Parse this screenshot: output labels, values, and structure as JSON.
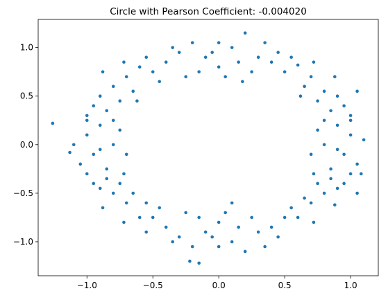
{
  "chart_data": {
    "type": "scatter",
    "title": "Circle with Pearson Coefficient: -0.004020",
    "color": "#1f77b4",
    "x": [
      -0.5,
      -0.4,
      -0.3,
      -0.2,
      -0.1,
      0,
      0.1,
      0.2,
      0.3,
      0.4,
      0.5,
      -0.45,
      -0.25,
      0.05,
      0.25,
      0.45,
      -0.35,
      0.15,
      -0.15,
      0.35,
      0.55,
      -0.55,
      0,
      -0.05,
      0.18,
      -0.7,
      -0.8,
      -0.9,
      -0.65,
      -0.75,
      -0.85,
      -0.95,
      -0.6,
      -0.72,
      -1.0,
      -0.88,
      -0.62,
      0.7,
      0.8,
      0.9,
      0.65,
      0.75,
      0.85,
      0.95,
      0.6,
      0.72,
      1.0,
      0.88,
      0.62,
      1.05,
      -0.9,
      -1.0,
      -0.8,
      -0.95,
      -1.05,
      -0.85,
      -0.75,
      -1.1,
      -0.7,
      -0.9,
      -1.0,
      -0.8,
      -1.26,
      -1.13,
      -0.72,
      0.9,
      1.0,
      0.8,
      0.95,
      1.05,
      0.85,
      0.75,
      1.1,
      0.7,
      0.9,
      1.0,
      0.8,
      1.08,
      0.72,
      -0.7,
      -0.8,
      -0.9,
      -0.65,
      -0.75,
      -0.85,
      -0.95,
      -0.6,
      -0.72,
      -1.0,
      -0.88,
      -0.55,
      0.7,
      0.8,
      0.9,
      0.65,
      0.75,
      0.85,
      0.95,
      0.6,
      0.72,
      1.0,
      0.88,
      0.55,
      1.05,
      -0.5,
      -0.4,
      -0.3,
      -0.2,
      -0.1,
      0,
      0.1,
      0.2,
      0.3,
      0.4,
      0.5,
      -0.45,
      -0.25,
      0.05,
      0.25,
      0.45,
      -0.35,
      0.15,
      -0.15,
      0.35,
      -0.55,
      0,
      -0.05,
      -0.15,
      -0.22,
      0.1
    ],
    "y": [
      0.75,
      0.85,
      0.95,
      1.05,
      0.9,
      0.8,
      1.0,
      1.15,
      0.9,
      0.85,
      0.75,
      0.65,
      0.7,
      0.7,
      0.75,
      0.95,
      1.0,
      0.85,
      0.75,
      1.05,
      0.9,
      0.9,
      1.05,
      0.95,
      0.65,
      0.7,
      0.6,
      0.5,
      0.55,
      0.45,
      0.35,
      0.4,
      0.8,
      0.85,
      0.3,
      0.75,
      0.45,
      0.7,
      0.55,
      0.5,
      0.6,
      0.45,
      0.35,
      0.4,
      0.82,
      0.85,
      0.3,
      0.7,
      0.5,
      0.55,
      0.2,
      0.1,
      0.0,
      -0.1,
      -0.2,
      -0.25,
      0.15,
      0.0,
      -0.1,
      -0.05,
      0.25,
      0.25,
      0.22,
      -0.08,
      -0.3,
      0.2,
      0.1,
      0.0,
      -0.1,
      -0.2,
      -0.25,
      0.15,
      0.05,
      -0.1,
      -0.05,
      0.25,
      0.25,
      -0.3,
      -0.3,
      -0.6,
      -0.5,
      -0.45,
      -0.5,
      -0.4,
      -0.35,
      -0.4,
      -0.75,
      -0.8,
      -0.3,
      -0.65,
      -0.6,
      -0.6,
      -0.5,
      -0.45,
      -0.55,
      -0.4,
      -0.35,
      -0.4,
      -0.75,
      -0.8,
      -0.3,
      -0.62,
      -0.65,
      -0.5,
      -0.75,
      -0.85,
      -0.95,
      -1.05,
      -0.9,
      -0.8,
      -1.0,
      -1.1,
      -0.9,
      -0.85,
      -0.75,
      -0.65,
      -0.7,
      -0.7,
      -0.75,
      -0.95,
      -1.0,
      -0.85,
      -0.75,
      -1.05,
      -0.9,
      -1.05,
      -0.95,
      -1.22,
      -1.2,
      -0.6
    ],
    "xlim": [
      -1.37,
      1.21
    ],
    "ylim": [
      -1.35,
      1.29
    ],
    "xticks": [
      {
        "value": -1.0,
        "label": "−1.0"
      },
      {
        "value": -0.5,
        "label": "−0.5"
      },
      {
        "value": 0,
        "label": "0.0"
      },
      0.5,
      {
        "value": 1,
        "label": "1.0"
      }
    ],
    "yticks": [
      {
        "value": -1.0,
        "label": "−1.0"
      },
      {
        "value": -0.5,
        "label": "−0.5"
      },
      {
        "value": 0,
        "label": "0.0"
      },
      0.5,
      {
        "value": 1,
        "label": "1.0"
      }
    ]
  }
}
